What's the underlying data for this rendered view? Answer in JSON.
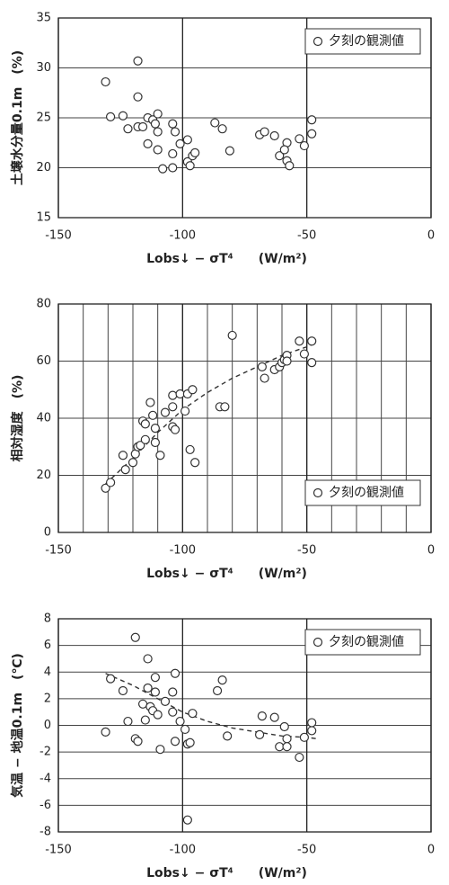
{
  "chart_data": [
    {
      "type": "scatter",
      "xlabel": "Lobs↓ − σT⁴　　(W/m²)",
      "ylabel": "土壌水分量0.1m　(%)",
      "xlim": [
        -150,
        0
      ],
      "xticks": [
        -150,
        -100,
        -50,
        0
      ],
      "ylim": [
        15,
        35
      ],
      "yticks": [
        15,
        20,
        25,
        30,
        35
      ],
      "grid": true,
      "legend": "top-right",
      "x": [
        -131,
        -129,
        -124,
        -122,
        -118,
        -118,
        -118,
        -116,
        -114,
        -114,
        -112,
        -111,
        -110,
        -110,
        -110,
        -108,
        -104,
        -103,
        -104,
        -104,
        -101,
        -98,
        -98,
        -97,
        -96,
        -95,
        -87,
        -84,
        -81,
        -69,
        -67,
        -63,
        -61,
        -58,
        -59,
        -58,
        -57,
        -53,
        -51,
        -48,
        -48
      ],
      "series": [
        {
          "name": "夕刻の観測値",
          "color": "#333333",
          "values": [
            28.6,
            25.1,
            25.2,
            23.9,
            30.7,
            27.1,
            24.1,
            24.1,
            22.4,
            25,
            24.8,
            24.4,
            25.4,
            23.6,
            21.8,
            19.9,
            24.4,
            23.6,
            21.4,
            20,
            22.4,
            22.8,
            20.6,
            20.2,
            21.2,
            21.5,
            24.5,
            23.9,
            21.7,
            23.3,
            23.6,
            23.2,
            21.2,
            22.5,
            21.8,
            20.7,
            20.2,
            22.9,
            22.2,
            24.8,
            23.4
          ]
        }
      ]
    },
    {
      "type": "scatter",
      "xlabel": "Lobs↓ − σT⁴　　(W/m²)",
      "ylabel": "相対湿度　(%)",
      "xlim": [
        -150,
        0
      ],
      "xticks": [
        -150,
        -100,
        -50,
        0
      ],
      "ylim": [
        0,
        80
      ],
      "yticks": [
        0,
        20,
        40,
        60,
        80
      ],
      "grid": true,
      "x_grid_step": 10,
      "legend": "bottom-right",
      "x": [
        -131,
        -129,
        -124,
        -123,
        -120,
        -119,
        -118,
        -117,
        -116,
        -115,
        -115,
        -113,
        -112,
        -111,
        -111,
        -109,
        -107,
        -104,
        -104,
        -104,
        -103,
        -101,
        -99,
        -98,
        -97,
        -96,
        -95,
        -85,
        -83,
        -80,
        -68,
        -67,
        -63,
        -61,
        -60,
        -59,
        -58,
        -58,
        -53,
        -51,
        -48,
        -48
      ],
      "series": [
        {
          "name": "夕刻の観測値",
          "color": "#333333",
          "values": [
            15.5,
            17.5,
            27,
            22,
            24.5,
            27.5,
            30,
            30.5,
            39,
            38,
            32.5,
            45.5,
            41,
            31.5,
            36.5,
            27,
            42,
            48,
            44,
            37,
            36,
            48.5,
            42.5,
            48.5,
            29,
            50,
            24.5,
            44,
            44,
            69,
            58,
            54,
            57,
            58,
            59.5,
            60.5,
            62,
            60,
            67,
            62.5,
            67,
            59.5
          ]
        }
      ],
      "trend": {
        "x": [
          -131,
          -120,
          -110,
          -100,
          -90,
          -80,
          -70,
          -60,
          -50,
          -46
        ],
        "values": [
          17,
          26,
          35,
          43,
          49,
          54,
          58,
          62,
          65,
          66.5
        ]
      }
    },
    {
      "type": "scatter",
      "xlabel": "Lobs↓ − σT⁴　　(W/m²)",
      "ylabel": "気温 − 地温0.1m　(℃)",
      "xlim": [
        -150,
        0
      ],
      "xticks": [
        -150,
        -100,
        -50,
        0
      ],
      "ylim": [
        -8,
        8
      ],
      "yticks": [
        -8,
        -6,
        -4,
        -2,
        0,
        2,
        4,
        6,
        8
      ],
      "grid": true,
      "legend": "top-right",
      "x": [
        -131,
        -129,
        -124,
        -122,
        -119,
        -119,
        -118,
        -116,
        -115,
        -114,
        -114,
        -113,
        -112,
        -111,
        -111,
        -110,
        -109,
        -107,
        -104,
        -104,
        -103,
        -103,
        -101,
        -99,
        -98,
        -97,
        -96,
        -98,
        -86,
        -84,
        -82,
        -69,
        -68,
        -63,
        -61,
        -59,
        -58,
        -58,
        -53,
        -51,
        -48,
        -48
      ],
      "series": [
        {
          "name": "夕刻の観測値",
          "color": "#333333",
          "values": [
            -0.5,
            3.5,
            2.6,
            0.3,
            6.6,
            -1,
            -1.2,
            1.6,
            0.4,
            5,
            2.8,
            1.4,
            1.1,
            3.6,
            2.5,
            0.8,
            -1.8,
            1.8,
            2.5,
            1,
            3.9,
            -1.2,
            0.3,
            -0.3,
            -1.4,
            -1.3,
            0.9,
            -7.1,
            2.6,
            3.4,
            -0.8,
            -0.7,
            0.7,
            0.6,
            -1.6,
            -0.1,
            -1,
            -1.6,
            -2.4,
            -0.9,
            0.2,
            -0.4
          ]
        }
      ],
      "trend": {
        "x": [
          -131,
          -120,
          -110,
          -100,
          -90,
          -80,
          -70,
          -60,
          -50,
          -46
        ],
        "values": [
          3.9,
          3.0,
          2.0,
          1.0,
          0.3,
          -0.2,
          -0.5,
          -0.8,
          -0.9,
          -1.0
        ]
      }
    }
  ]
}
